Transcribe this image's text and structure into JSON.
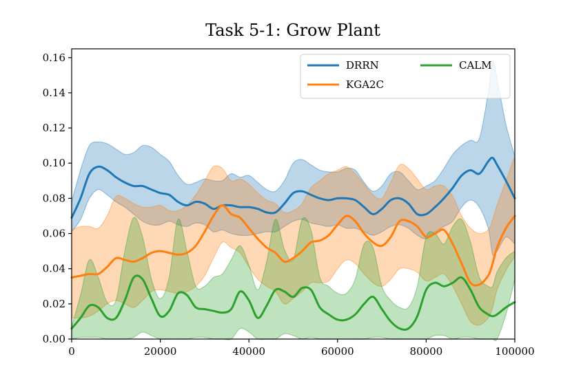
{
  "chart_data": {
    "type": "line",
    "title": "Task 5-1: Grow Plant",
    "xlabel": "",
    "ylabel": "",
    "xlim": [
      0,
      100000
    ],
    "ylim": [
      0,
      0.165
    ],
    "xticks": [
      "0",
      "20000",
      "40000",
      "60000",
      "80000",
      "100000"
    ],
    "yticks": [
      "0.00",
      "0.02",
      "0.04",
      "0.06",
      "0.08",
      "0.10",
      "0.12",
      "0.14",
      "0.16"
    ],
    "legend_position": "top-right",
    "x": [
      0,
      2000,
      4000,
      6000,
      8000,
      10000,
      12000,
      14000,
      16000,
      18000,
      20000,
      22000,
      24000,
      26000,
      28000,
      30000,
      32000,
      34000,
      36000,
      38000,
      40000,
      42000,
      44000,
      46000,
      48000,
      50000,
      52000,
      54000,
      56000,
      58000,
      60000,
      62000,
      64000,
      66000,
      68000,
      70000,
      72000,
      74000,
      76000,
      78000,
      80000,
      82000,
      84000,
      86000,
      88000,
      90000,
      92000,
      94000,
      95000,
      96000,
      98000,
      100000
    ],
    "series": [
      {
        "name": "DRRN",
        "color": "#1f77b4",
        "values": [
          0.069,
          0.08,
          0.094,
          0.098,
          0.096,
          0.092,
          0.089,
          0.087,
          0.087,
          0.085,
          0.083,
          0.082,
          0.078,
          0.076,
          0.078,
          0.077,
          0.074,
          0.076,
          0.076,
          0.075,
          0.075,
          0.074,
          0.072,
          0.072,
          0.077,
          0.083,
          0.084,
          0.082,
          0.08,
          0.079,
          0.08,
          0.08,
          0.079,
          0.075,
          0.071,
          0.074,
          0.079,
          0.08,
          0.077,
          0.071,
          0.071,
          0.075,
          0.08,
          0.086,
          0.093,
          0.096,
          0.094,
          0.101,
          0.103,
          0.099,
          0.09,
          0.08
        ],
        "upper": [
          0.078,
          0.096,
          0.11,
          0.112,
          0.111,
          0.108,
          0.105,
          0.106,
          0.11,
          0.109,
          0.105,
          0.101,
          0.093,
          0.088,
          0.089,
          0.091,
          0.09,
          0.09,
          0.094,
          0.092,
          0.093,
          0.089,
          0.085,
          0.084,
          0.09,
          0.1,
          0.102,
          0.099,
          0.096,
          0.095,
          0.095,
          0.097,
          0.096,
          0.089,
          0.084,
          0.087,
          0.094,
          0.095,
          0.09,
          0.085,
          0.087,
          0.09,
          0.097,
          0.105,
          0.11,
          0.113,
          0.114,
          0.14,
          0.158,
          0.148,
          0.122,
          0.104
        ],
        "lower": [
          0.061,
          0.068,
          0.08,
          0.085,
          0.082,
          0.078,
          0.075,
          0.071,
          0.067,
          0.065,
          0.065,
          0.067,
          0.065,
          0.064,
          0.066,
          0.065,
          0.061,
          0.062,
          0.06,
          0.059,
          0.059,
          0.06,
          0.061,
          0.061,
          0.064,
          0.067,
          0.068,
          0.066,
          0.065,
          0.064,
          0.065,
          0.063,
          0.063,
          0.061,
          0.059,
          0.061,
          0.064,
          0.065,
          0.063,
          0.059,
          0.057,
          0.061,
          0.064,
          0.067,
          0.075,
          0.079,
          0.075,
          0.063,
          0.048,
          0.05,
          0.058,
          0.054
        ]
      },
      {
        "name": "KGA2C",
        "color": "#ff7f0e",
        "values": [
          0.035,
          0.036,
          0.037,
          0.037,
          0.041,
          0.046,
          0.045,
          0.044,
          0.046,
          0.049,
          0.05,
          0.049,
          0.048,
          0.049,
          0.053,
          0.061,
          0.07,
          0.076,
          0.071,
          0.069,
          0.063,
          0.057,
          0.052,
          0.049,
          0.044,
          0.046,
          0.05,
          0.055,
          0.056,
          0.059,
          0.065,
          0.07,
          0.067,
          0.06,
          0.055,
          0.053,
          0.058,
          0.067,
          0.067,
          0.064,
          0.058,
          0.06,
          0.062,
          0.054,
          0.043,
          0.032,
          0.031,
          0.036,
          0.043,
          0.052,
          0.063,
          0.07
        ],
        "upper": [
          0.062,
          0.064,
          0.064,
          0.063,
          0.07,
          0.081,
          0.08,
          0.077,
          0.075,
          0.075,
          0.076,
          0.073,
          0.073,
          0.076,
          0.082,
          0.09,
          0.098,
          0.097,
          0.09,
          0.091,
          0.088,
          0.083,
          0.079,
          0.077,
          0.072,
          0.073,
          0.077,
          0.086,
          0.09,
          0.094,
          0.096,
          0.098,
          0.094,
          0.088,
          0.082,
          0.08,
          0.089,
          0.099,
          0.097,
          0.091,
          0.085,
          0.087,
          0.087,
          0.081,
          0.07,
          0.063,
          0.06,
          0.062,
          0.068,
          0.076,
          0.09,
          0.104
        ],
        "lower": [
          0.012,
          0.012,
          0.013,
          0.016,
          0.02,
          0.022,
          0.02,
          0.018,
          0.022,
          0.027,
          0.028,
          0.027,
          0.026,
          0.027,
          0.03,
          0.036,
          0.046,
          0.055,
          0.052,
          0.049,
          0.041,
          0.034,
          0.03,
          0.027,
          0.02,
          0.023,
          0.027,
          0.032,
          0.032,
          0.033,
          0.04,
          0.045,
          0.043,
          0.037,
          0.032,
          0.03,
          0.034,
          0.04,
          0.04,
          0.038,
          0.033,
          0.035,
          0.037,
          0.03,
          0.02,
          0.01,
          0.008,
          0.012,
          0.018,
          0.028,
          0.039,
          0.047
        ]
      },
      {
        "name": "CALM",
        "color": "#2ca02c",
        "values": [
          0.006,
          0.012,
          0.019,
          0.018,
          0.012,
          0.012,
          0.022,
          0.035,
          0.034,
          0.023,
          0.013,
          0.016,
          0.026,
          0.025,
          0.018,
          0.017,
          0.016,
          0.015,
          0.017,
          0.027,
          0.022,
          0.012,
          0.019,
          0.028,
          0.027,
          0.024,
          0.029,
          0.028,
          0.018,
          0.014,
          0.011,
          0.011,
          0.014,
          0.02,
          0.024,
          0.017,
          0.01,
          0.006,
          0.006,
          0.013,
          0.028,
          0.032,
          0.03,
          0.032,
          0.035,
          0.028,
          0.018,
          0.014,
          0.013,
          0.014,
          0.018,
          0.021
        ],
        "upper": [
          0.007,
          0.025,
          0.045,
          0.035,
          0.021,
          0.022,
          0.05,
          0.069,
          0.058,
          0.034,
          0.023,
          0.035,
          0.068,
          0.05,
          0.03,
          0.03,
          0.035,
          0.037,
          0.045,
          0.053,
          0.042,
          0.028,
          0.044,
          0.068,
          0.051,
          0.045,
          0.068,
          0.062,
          0.035,
          0.03,
          0.026,
          0.026,
          0.034,
          0.054,
          0.052,
          0.03,
          0.022,
          0.018,
          0.018,
          0.03,
          0.058,
          0.06,
          0.054,
          0.064,
          0.068,
          0.055,
          0.035,
          0.03,
          0.03,
          0.038,
          0.046,
          0.05
        ],
        "lower": [
          0.0,
          0.001,
          0.001,
          0.001,
          0.0,
          0.0,
          0.0,
          0.001,
          0.004,
          0.002,
          0.0,
          0.0,
          0.0,
          0.0,
          0.001,
          0.001,
          0.0,
          0.0,
          0.0,
          0.006,
          0.004,
          0.0,
          0.0,
          0.0,
          0.003,
          0.002,
          0.0,
          0.001,
          0.0,
          0.0,
          0.0,
          0.0,
          0.0,
          0.0,
          0.001,
          0.001,
          0.0,
          0.0,
          0.0,
          0.0,
          0.0,
          0.002,
          0.002,
          0.0,
          0.001,
          0.001,
          0.0,
          0.0,
          0.0,
          0.0,
          0.014,
          0.034
        ]
      }
    ]
  }
}
